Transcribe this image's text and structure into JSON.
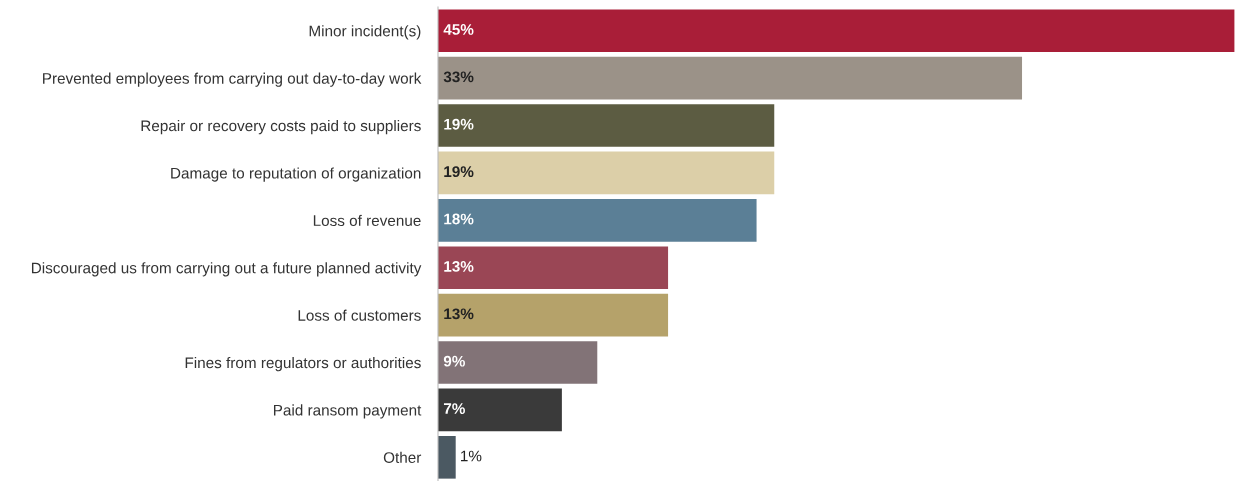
{
  "chart_data": {
    "type": "bar",
    "orientation": "horizontal",
    "categories": [
      "Minor incident(s)",
      "Prevented employees from carrying out day-to-day work",
      "Repair or recovery costs paid to suppliers",
      "Damage to reputation of organization",
      "Loss of revenue",
      "Discouraged us from carrying out a future planned activity",
      "Loss of customers",
      "Fines from regulators or authorities",
      "Paid ransom payment",
      "Other"
    ],
    "values": [
      45,
      33,
      19,
      19,
      18,
      13,
      13,
      9,
      7,
      1
    ],
    "value_labels": [
      "45%",
      "33%",
      "19%",
      "19%",
      "18%",
      "13%",
      "13%",
      "9%",
      "7%",
      "1%"
    ],
    "colors": [
      "#a91e38",
      "#9b9288",
      "#5c5c42",
      "#dccfa8",
      "#5b7f96",
      "#9a4655",
      "#b5a26a",
      "#827377",
      "#3a3a3a",
      "#4b5962"
    ],
    "grid": false,
    "legend": false
  }
}
